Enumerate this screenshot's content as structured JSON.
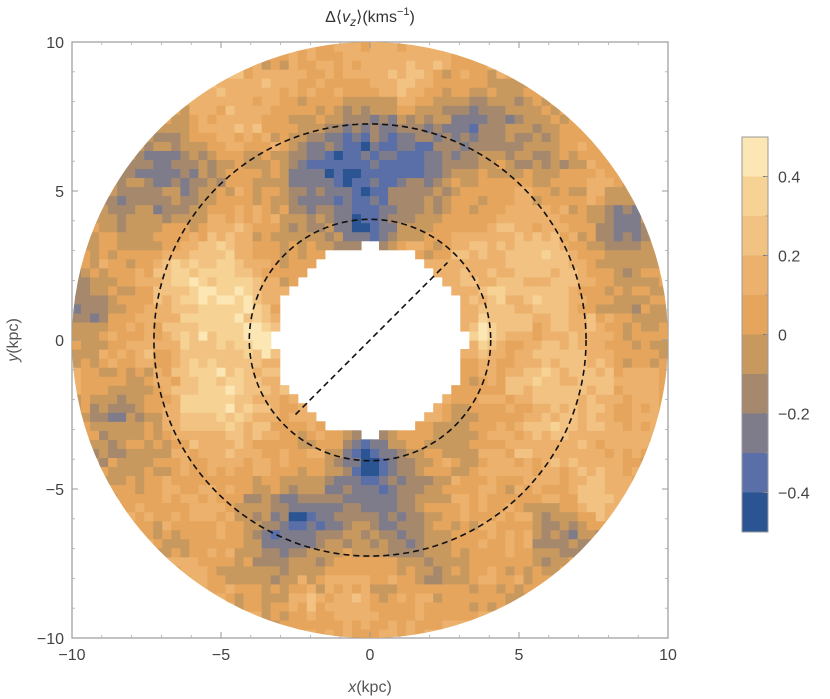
{
  "chart_data": {
    "type": "heatmap",
    "title": "Δ⟨v_z⟩(kms⁻¹)",
    "title_parts": {
      "delta": "Δ⟨",
      "var": "v",
      "sub": "z",
      "close": "⟩(kms",
      "sup": "−1",
      "end": ")"
    },
    "xlabel": {
      "var": "x",
      "unit": "(kpc)"
    },
    "ylabel": {
      "var": "y",
      "unit": "(kpc)"
    },
    "xlim": [
      -10,
      10
    ],
    "ylim": [
      -10,
      10
    ],
    "x_ticks": [
      {
        "value": -10,
        "label": "−10"
      },
      {
        "value": -5,
        "label": "−5"
      },
      {
        "value": 0,
        "label": "0"
      },
      {
        "value": 5,
        "label": "5"
      },
      {
        "value": 10,
        "label": "10"
      }
    ],
    "y_ticks": [
      {
        "value": 10,
        "label": "10"
      },
      {
        "value": 5,
        "label": "5"
      },
      {
        "value": 0,
        "label": "0"
      },
      {
        "value": -5,
        "label": "−5"
      },
      {
        "value": -10,
        "label": "−10"
      }
    ],
    "annulus": {
      "inner_radius_kpc": 3.5,
      "outer_radius_kpc": 10
    },
    "dashed_circles_kpc": [
      4.05,
      7.25
    ],
    "dashed_line": {
      "from": [
        -2.5,
        -2.5
      ],
      "to": [
        2.6,
        2.6
      ]
    },
    "colorbar": {
      "range": [
        -0.5,
        0.5
      ],
      "levels": [
        {
          "from": 0.4,
          "to": 0.5,
          "color": "#fbe6b4"
        },
        {
          "from": 0.3,
          "to": 0.4,
          "color": "#f6d394"
        },
        {
          "from": 0.2,
          "to": 0.3,
          "color": "#f1c282"
        },
        {
          "from": 0.1,
          "to": 0.2,
          "color": "#ecb16c"
        },
        {
          "from": 0.0,
          "to": 0.1,
          "color": "#e6a55d"
        },
        {
          "from": -0.1,
          "to": 0.0,
          "color": "#c8995f"
        },
        {
          "from": -0.2,
          "to": -0.1,
          "color": "#a6886c"
        },
        {
          "from": -0.3,
          "to": -0.2,
          "color": "#7e7c8a"
        },
        {
          "from": -0.4,
          "to": -0.3,
          "color": "#5a6fa8"
        },
        {
          "from": -0.5,
          "to": -0.4,
          "color": "#2a5592"
        }
      ],
      "ticks": [
        {
          "value": 0.4,
          "label": "0.4"
        },
        {
          "value": 0.2,
          "label": "0.2"
        },
        {
          "value": 0,
          "label": "0"
        },
        {
          "value": -0.2,
          "label": "−0.2"
        },
        {
          "value": -0.4,
          "label": "−0.4"
        }
      ]
    },
    "features": [
      {
        "x": -5.2,
        "y": 1.8,
        "amp": 0.32,
        "sigma": 1.4
      },
      {
        "x": -5.0,
        "y": -2.0,
        "amp": 0.3,
        "sigma": 1.3
      },
      {
        "x": -3.6,
        "y": 0.0,
        "amp": 0.42,
        "sigma": 0.35
      },
      {
        "x": 3.8,
        "y": 0.2,
        "amp": 0.4,
        "sigma": 0.35
      },
      {
        "x": 5.3,
        "y": 2.2,
        "amp": 0.22,
        "sigma": 1.4
      },
      {
        "x": 6.5,
        "y": -2.0,
        "amp": 0.18,
        "sigma": 1.2
      },
      {
        "x": 7.5,
        "y": -5.2,
        "amp": 0.3,
        "sigma": 0.6
      },
      {
        "x": 1.5,
        "y": 8.5,
        "amp": 0.15,
        "sigma": 1.2
      },
      {
        "x": -4.5,
        "y": 7.8,
        "amp": 0.12,
        "sigma": 1.2
      },
      {
        "x": -1.0,
        "y": 5.5,
        "amp": -0.42,
        "sigma": 1.4
      },
      {
        "x": 1.5,
        "y": 6.3,
        "amp": -0.38,
        "sigma": 1.1
      },
      {
        "x": 0.0,
        "y": 3.8,
        "amp": -0.35,
        "sigma": 0.6
      },
      {
        "x": 0.0,
        "y": -4.0,
        "amp": -0.4,
        "sigma": 0.7
      },
      {
        "x": -2.5,
        "y": -6.3,
        "amp": -0.4,
        "sigma": 1.1
      },
      {
        "x": 0.5,
        "y": -5.5,
        "amp": -0.3,
        "sigma": 1.0
      },
      {
        "x": -7.5,
        "y": 4.5,
        "amp": -0.22,
        "sigma": 1.3
      },
      {
        "x": -6.5,
        "y": 6.0,
        "amp": -0.2,
        "sigma": 1.0
      },
      {
        "x": 8.5,
        "y": 3.8,
        "amp": -0.38,
        "sigma": 0.8
      },
      {
        "x": 3.5,
        "y": 7.5,
        "amp": -0.25,
        "sigma": 1.0
      },
      {
        "x": -9.5,
        "y": 1.0,
        "amp": -0.28,
        "sigma": 0.8
      },
      {
        "x": -8.5,
        "y": -3.0,
        "amp": -0.22,
        "sigma": 1.0
      },
      {
        "x": 9.2,
        "y": 1.0,
        "amp": -0.18,
        "sigma": 0.8
      },
      {
        "x": 6.8,
        "y": -6.5,
        "amp": -0.2,
        "sigma": 0.9
      },
      {
        "x": 5.5,
        "y": 6.5,
        "amp": -0.18,
        "sigma": 0.9
      },
      {
        "x": -3.2,
        "y": 3.0,
        "amp": -0.15,
        "sigma": 0.6
      },
      {
        "x": 3.0,
        "y": -3.2,
        "amp": -0.12,
        "sigma": 0.6
      },
      {
        "x": -1.5,
        "y": -8.5,
        "amp": 0.1,
        "sigma": 1.0
      },
      {
        "x": 2.0,
        "y": -7.5,
        "amp": -0.15,
        "sigma": 0.9
      }
    ],
    "noise_amplitude": 0.07
  }
}
